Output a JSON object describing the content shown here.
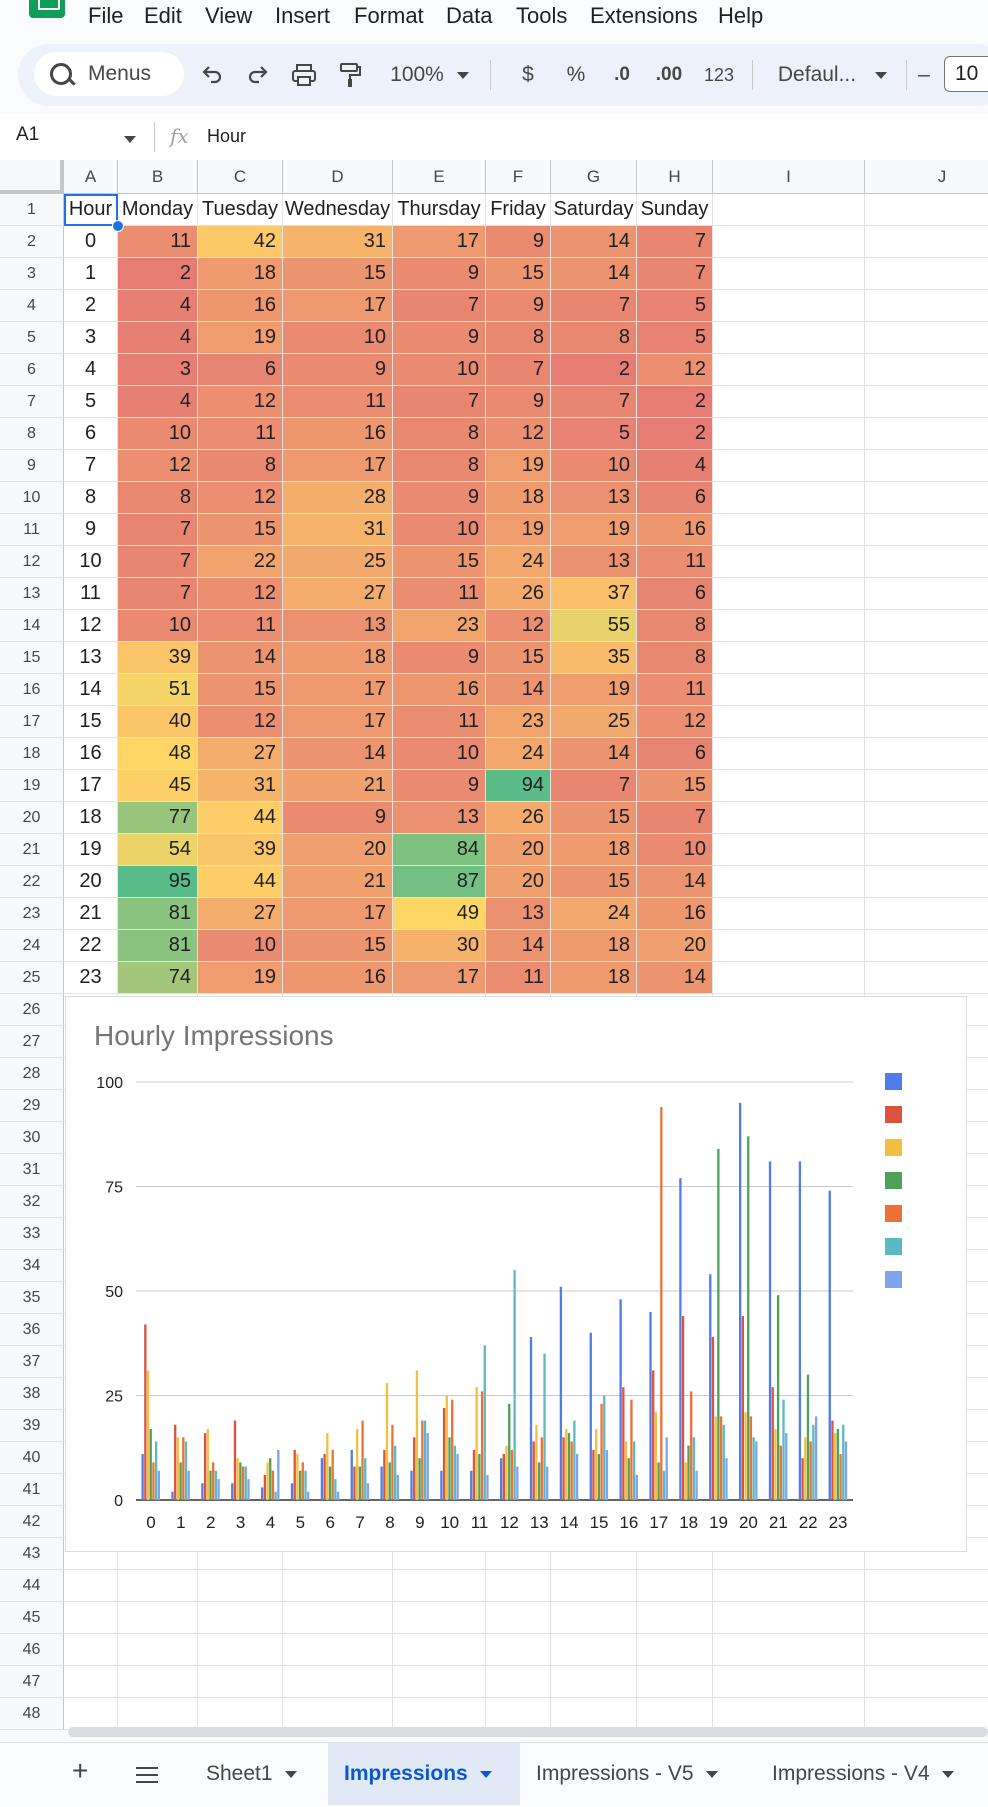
{
  "menu": [
    "File",
    "Edit",
    "View",
    "Insert",
    "Format",
    "Data",
    "Tools",
    "Extensions",
    "Help"
  ],
  "toolbar": {
    "search_label": "Menus",
    "zoom": "100%",
    "currency": "$",
    "percent": "%",
    "dec_decrease": ".0",
    "dec_increase": ".00",
    "number_format": "123",
    "font": "Defaul...",
    "font_size": "10",
    "minus": "–"
  },
  "formula_bar": {
    "name_box": "A1",
    "fx": "fx",
    "value": "Hour"
  },
  "columns": [
    "A",
    "B",
    "C",
    "D",
    "E",
    "F",
    "G",
    "H",
    "I",
    "J"
  ],
  "header_row": [
    "Hour",
    "Monday",
    "Tuesday",
    "Wednesday",
    "Thursday",
    "Friday",
    "Saturday",
    "Sunday"
  ],
  "table": [
    [
      0,
      11,
      42,
      31,
      17,
      9,
      14,
      7
    ],
    [
      1,
      2,
      18,
      15,
      9,
      15,
      14,
      7
    ],
    [
      2,
      4,
      16,
      17,
      7,
      9,
      7,
      5
    ],
    [
      3,
      4,
      19,
      10,
      9,
      8,
      8,
      5
    ],
    [
      4,
      3,
      6,
      9,
      10,
      7,
      2,
      12
    ],
    [
      5,
      4,
      12,
      11,
      7,
      9,
      7,
      2
    ],
    [
      6,
      10,
      11,
      16,
      8,
      12,
      5,
      2
    ],
    [
      7,
      12,
      8,
      17,
      8,
      19,
      10,
      4
    ],
    [
      8,
      8,
      12,
      28,
      9,
      18,
      13,
      6
    ],
    [
      9,
      7,
      15,
      31,
      10,
      19,
      19,
      16
    ],
    [
      10,
      7,
      22,
      25,
      15,
      24,
      13,
      11
    ],
    [
      11,
      7,
      12,
      27,
      11,
      26,
      37,
      6
    ],
    [
      12,
      10,
      11,
      13,
      23,
      12,
      55,
      8
    ],
    [
      13,
      39,
      14,
      18,
      9,
      15,
      35,
      8
    ],
    [
      14,
      51,
      15,
      17,
      16,
      14,
      19,
      11
    ],
    [
      15,
      40,
      12,
      17,
      11,
      23,
      25,
      12
    ],
    [
      16,
      48,
      27,
      14,
      10,
      24,
      14,
      6
    ],
    [
      17,
      45,
      31,
      21,
      9,
      94,
      7,
      15
    ],
    [
      18,
      77,
      44,
      9,
      13,
      26,
      15,
      7
    ],
    [
      19,
      54,
      39,
      20,
      84,
      20,
      18,
      10
    ],
    [
      20,
      95,
      44,
      21,
      87,
      20,
      15,
      14
    ],
    [
      21,
      81,
      27,
      17,
      49,
      13,
      24,
      16
    ],
    [
      22,
      81,
      10,
      15,
      30,
      14,
      18,
      20
    ],
    [
      23,
      74,
      19,
      16,
      17,
      11,
      18,
      14
    ]
  ],
  "heat_colors": {
    "low": "#e67c73",
    "mid": "#ffd666",
    "high": "#57bb8a"
  },
  "chart_data": {
    "type": "bar",
    "title": "Hourly Impressions",
    "categories": [
      "0",
      "1",
      "2",
      "3",
      "4",
      "5",
      "6",
      "7",
      "8",
      "9",
      "10",
      "11",
      "12",
      "13",
      "14",
      "15",
      "16",
      "17",
      "18",
      "19",
      "20",
      "21",
      "22",
      "23"
    ],
    "ylim": [
      0,
      100
    ],
    "yticks": [
      "0",
      "25",
      "50",
      "75",
      "100"
    ],
    "grid": true,
    "legend": "right",
    "series": [
      {
        "color": "#4e7de9",
        "values": [
          11,
          2,
          4,
          4,
          3,
          4,
          10,
          12,
          8,
          7,
          7,
          7,
          10,
          39,
          51,
          40,
          48,
          45,
          77,
          54,
          95,
          81,
          81,
          74
        ]
      },
      {
        "color": "#d9533d",
        "values": [
          42,
          18,
          16,
          19,
          6,
          12,
          11,
          8,
          12,
          15,
          22,
          12,
          11,
          14,
          15,
          12,
          27,
          31,
          44,
          39,
          44,
          27,
          10,
          19
        ]
      },
      {
        "color": "#f2bf3e",
        "values": [
          31,
          15,
          17,
          10,
          9,
          11,
          16,
          17,
          28,
          31,
          25,
          27,
          13,
          18,
          17,
          17,
          14,
          21,
          9,
          20,
          21,
          17,
          15,
          16
        ]
      },
      {
        "color": "#4ea15a",
        "values": [
          17,
          9,
          7,
          9,
          10,
          7,
          8,
          8,
          9,
          10,
          15,
          11,
          23,
          9,
          16,
          11,
          10,
          9,
          13,
          84,
          87,
          49,
          30,
          17
        ]
      },
      {
        "color": "#ec7233",
        "values": [
          9,
          15,
          9,
          8,
          7,
          9,
          12,
          19,
          18,
          19,
          24,
          26,
          12,
          15,
          14,
          23,
          24,
          94,
          26,
          20,
          20,
          13,
          14,
          11
        ]
      },
      {
        "color": "#5bb9c1",
        "values": [
          14,
          14,
          7,
          8,
          2,
          7,
          5,
          10,
          13,
          19,
          13,
          37,
          55,
          35,
          19,
          25,
          14,
          7,
          15,
          18,
          15,
          24,
          18,
          18
        ]
      },
      {
        "color": "#7ea3ef",
        "values": [
          7,
          7,
          5,
          5,
          12,
          2,
          2,
          4,
          6,
          16,
          11,
          6,
          8,
          8,
          11,
          12,
          6,
          15,
          7,
          10,
          14,
          16,
          20,
          14
        ]
      }
    ]
  },
  "row_numbers": [
    1,
    2,
    3,
    4,
    5,
    6,
    7,
    8,
    9,
    10,
    11,
    12,
    13,
    14,
    15,
    16,
    17,
    18,
    19,
    20,
    21,
    22,
    23,
    24,
    25,
    26,
    27,
    28,
    29,
    30,
    31,
    32,
    33,
    34,
    35,
    36,
    37,
    38,
    39,
    40,
    41,
    42,
    43,
    44,
    45,
    46,
    47,
    48
  ],
  "sheets": {
    "add": "+",
    "tabs": [
      "Sheet1",
      "Impressions",
      "Impressions - V5",
      "Impressions - V4"
    ],
    "active": 1
  }
}
